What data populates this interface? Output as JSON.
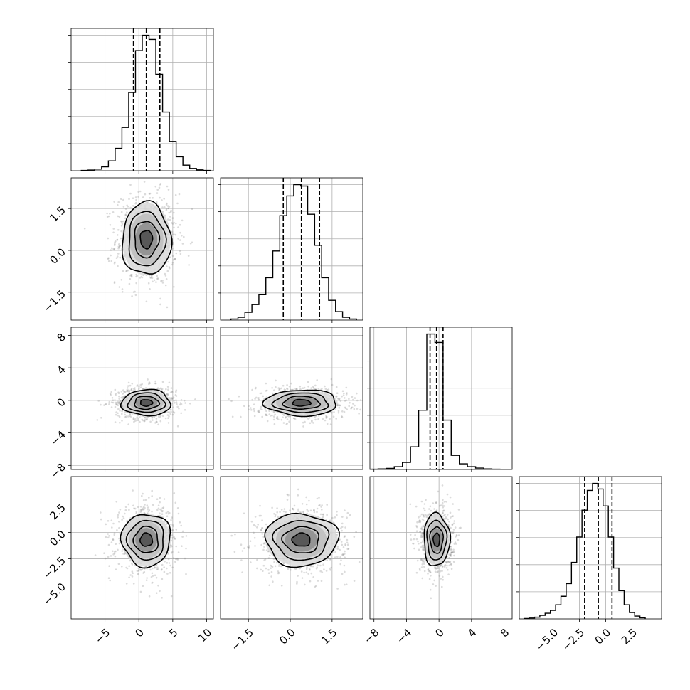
{
  "chart_data": {
    "type": "corner",
    "grid": true,
    "quantiles": [
      0.16,
      0.5,
      0.84
    ],
    "parameters": [
      {
        "mean": 1.1,
        "sd": 1.8,
        "range": [
          -10,
          11
        ],
        "ticks": [
          -5,
          0,
          5,
          10
        ],
        "tick_labels": [
          "−5",
          "0",
          "5",
          "10"
        ]
      },
      {
        "mean": 0.4,
        "sd": 0.65,
        "range": [
          -2.5,
          2.6
        ],
        "ticks": [
          -1.5,
          0.0,
          1.5
        ],
        "tick_labels": [
          "−1.5",
          "0.0",
          "1.5"
        ]
      },
      {
        "mean": -0.3,
        "sd": 0.8,
        "range": [
          -8.5,
          9
        ],
        "ticks": [
          -8,
          -4,
          0,
          4,
          8
        ],
        "tick_labels": [
          "−8",
          "−4",
          "0",
          "4",
          "8"
        ]
      },
      {
        "mean": -0.7,
        "sd": 1.25,
        "range": [
          -8.2,
          5.3
        ],
        "ticks": [
          -5.0,
          -2.5,
          0.0,
          2.5
        ],
        "tick_labels": [
          "−5.0",
          "−2.5",
          "0.0",
          "2.5"
        ]
      }
    ],
    "histograms": [
      {
        "x": [
          -8,
          -7,
          -6,
          -5,
          -4,
          -3,
          -2,
          -1,
          0,
          1,
          2,
          3,
          4,
          5,
          6,
          7,
          8,
          9,
          10
        ],
        "y": [
          0.002,
          0.005,
          0.011,
          0.028,
          0.07,
          0.16,
          0.31,
          0.56,
          0.86,
          0.97,
          0.94,
          0.69,
          0.42,
          0.21,
          0.1,
          0.04,
          0.016,
          0.006,
          0.002
        ],
        "quantile_values": [
          -0.8,
          1.1,
          3.1
        ]
      },
      {
        "x": [
          -2.0,
          -1.75,
          -1.5,
          -1.25,
          -1.0,
          -0.75,
          -0.5,
          -0.25,
          0.0,
          0.25,
          0.5,
          0.75,
          1.0,
          1.25,
          1.5,
          1.75,
          2.0,
          2.25
        ],
        "y": [
          0.008,
          0.02,
          0.055,
          0.11,
          0.18,
          0.3,
          0.49,
          0.74,
          0.88,
          0.96,
          0.95,
          0.75,
          0.53,
          0.3,
          0.14,
          0.06,
          0.02,
          0.008
        ],
        "quantile_values": [
          -0.25,
          0.4,
          1.05
        ]
      },
      {
        "x": [
          -8,
          -7,
          -6,
          -5,
          -4,
          -3,
          -2,
          -1,
          0,
          1,
          2,
          3,
          4,
          5,
          6,
          7
        ],
        "y": [
          0.002,
          0.004,
          0.008,
          0.02,
          0.05,
          0.16,
          0.42,
          0.96,
          0.9,
          0.35,
          0.1,
          0.04,
          0.02,
          0.01,
          0.004,
          0.002
        ],
        "quantile_values": [
          -1.1,
          -0.3,
          0.5
        ]
      },
      {
        "x": [
          -7.5,
          -7.0,
          -6.5,
          -6.0,
          -5.5,
          -5.0,
          -4.5,
          -4.0,
          -3.5,
          -3.0,
          -2.5,
          -2.0,
          -1.5,
          -1.0,
          -0.5,
          0.0,
          0.5,
          1.0,
          1.5,
          2.0,
          2.5,
          3.0,
          3.5
        ],
        "y": [
          0.003,
          0.006,
          0.012,
          0.025,
          0.04,
          0.06,
          0.1,
          0.16,
          0.25,
          0.4,
          0.58,
          0.77,
          0.91,
          0.96,
          0.92,
          0.8,
          0.58,
          0.36,
          0.2,
          0.1,
          0.045,
          0.02,
          0.008
        ],
        "quantile_values": [
          -2.0,
          -0.7,
          0.6
        ]
      }
    ],
    "pairs": [
      {
        "row": 1,
        "col": 0,
        "n_points": 900
      },
      {
        "row": 2,
        "col": 0,
        "n_points": 900
      },
      {
        "row": 2,
        "col": 1,
        "n_points": 900
      },
      {
        "row": 3,
        "col": 0,
        "n_points": 900
      },
      {
        "row": 3,
        "col": 1,
        "n_points": 900
      },
      {
        "row": 3,
        "col": 2,
        "n_points": 900
      }
    ],
    "contour_levels_sigma": [
      0.5,
      1.0,
      1.5,
      2.0
    ]
  }
}
